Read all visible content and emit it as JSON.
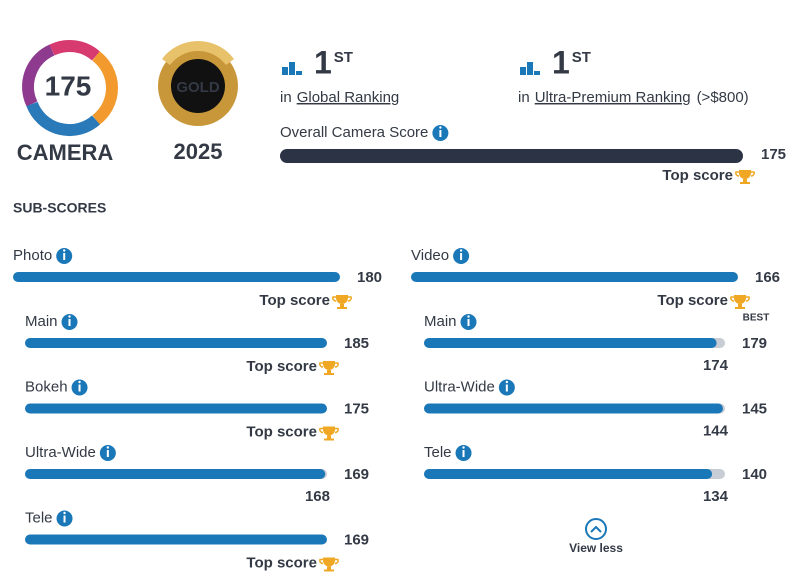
{
  "badge": {
    "score": 175,
    "label": "CAMERA",
    "medal": "GOLD",
    "year": "2025"
  },
  "rankings": [
    {
      "rank": 1,
      "suffix": "ST",
      "prefix": "in",
      "name": "Global Ranking"
    },
    {
      "rank": 1,
      "suffix": "ST",
      "prefix": "in",
      "name": "Ultra-Premium Ranking",
      "note": "(>$800)"
    }
  ],
  "overall": {
    "label": "Overall Camera Score",
    "score": 175
  },
  "top_score_label": "Top score",
  "best_label": "BEST",
  "subscores_title": "SUB-SCORES",
  "columns": [
    {
      "name": "Photo",
      "score": 180,
      "items": [
        {
          "name": "Main",
          "score": 185
        },
        {
          "name": "Bokeh",
          "score": 175
        },
        {
          "name": "Ultra-Wide",
          "score": 168,
          "best": 169
        },
        {
          "name": "Tele",
          "score": 169
        }
      ]
    },
    {
      "name": "Video",
      "score": 166,
      "items": [
        {
          "name": "Main",
          "score": 174,
          "best": 179
        },
        {
          "name": "Ultra-Wide",
          "score": 144,
          "best": 145
        },
        {
          "name": "Tele",
          "score": 134,
          "best": 140
        }
      ]
    }
  ],
  "view_less": "View less"
}
